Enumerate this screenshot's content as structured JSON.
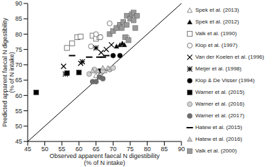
{
  "chart_data": {
    "type": "scatter",
    "x_label": "Observed apparent faecal N digestibility (% of N intake)",
    "y_label": "Predicted apparent faecal N digestibility (% of N intake)",
    "xlim": [
      45,
      90
    ],
    "ylim": [
      45,
      90
    ],
    "xticks": [
      45,
      50,
      55,
      60,
      65,
      70,
      75,
      80,
      85,
      90
    ],
    "yticks": [
      45,
      50,
      55,
      60,
      65,
      70,
      75,
      80,
      85,
      90
    ],
    "grid": false,
    "legend": "right",
    "series": [
      {
        "name": "Spek et al. (2013)",
        "color": "#8a8a8a",
        "marker": "open_triangle",
        "x": [
          65,
          66.2,
          67.5
        ],
        "values": [
          66.5,
          67,
          68
        ]
      },
      {
        "name": "Spek et al. (2012)",
        "color": "#000000",
        "marker": "triangle",
        "x": [
          71,
          72,
          72.7,
          73.3
        ],
        "values": [
          76,
          76.5,
          77,
          76.5
        ]
      },
      {
        "name": "Valk et al. (1990)",
        "color": "#7a7a7a",
        "marker": "open_square",
        "x": [
          56.5,
          58,
          59.5,
          60.5,
          64,
          65,
          66
        ],
        "values": [
          75.5,
          77,
          79,
          79.2,
          79.5,
          78.5,
          79
        ]
      },
      {
        "name": "Klop et al. (1997)",
        "color": "#7a7a7a",
        "marker": "open_circle",
        "x": [
          63.5,
          65,
          66.3,
          69,
          71,
          72,
          74
        ],
        "values": [
          76,
          80,
          79,
          83.5,
          82,
          83,
          79
        ]
      },
      {
        "name": "Van der Koelen et al. (1996)",
        "color": "#000000",
        "marker": "x",
        "x": [
          55.5,
          60.5,
          66.5,
          68,
          69.5
        ],
        "values": [
          69.5,
          70.5,
          74,
          75,
          76.5
        ]
      },
      {
        "name": "Meijer et al. (1998)",
        "color": "#000000",
        "marker": "star",
        "x": [
          56,
          61,
          65
        ],
        "values": [
          67,
          71,
          75.5
        ]
      },
      {
        "name": "Klop & De Visser (1994)",
        "color": "#000000",
        "marker": "circle",
        "x": [
          66,
          69,
          70,
          72
        ],
        "values": [
          68,
          68.5,
          73,
          73
        ]
      },
      {
        "name": "Warner et al. (2015)",
        "color": "#000000",
        "marker": "square",
        "x": [
          47.5,
          56.5,
          60
        ],
        "values": [
          61,
          67.3,
          67.5
        ]
      },
      {
        "name": "Warner et al. (2016)",
        "color": "#d0d0d0",
        "marker": "circle",
        "x": [
          63,
          64.5,
          67,
          69,
          70
        ],
        "values": [
          67,
          68.5,
          68,
          68.5,
          69
        ]
      },
      {
        "name": "Warner et al. (2017)",
        "color": "#6e6e6e",
        "marker": "circle",
        "x": [
          64,
          65,
          66,
          67
        ],
        "values": [
          64.5,
          64.5,
          66,
          65.5
        ]
      },
      {
        "name": "Hatew et al. (2015)",
        "color": "#000000",
        "marker": "dash",
        "x": [
          58,
          63,
          66,
          67,
          68
        ],
        "values": [
          73,
          72.5,
          72.5,
          72.5,
          73
        ]
      },
      {
        "name": "Hatew et al. (2016)",
        "color": "#c8c8c8",
        "marker": "triangle",
        "x": [
          64,
          65.5,
          67,
          68.5
        ],
        "values": [
          68,
          68,
          69,
          69
        ]
      },
      {
        "name": "Valk et al. (2000)",
        "color": "#9a9a9a",
        "marker": "square",
        "x": [
          69,
          70,
          71,
          72,
          72.5,
          73,
          73.5,
          74,
          74.5,
          75,
          75.5,
          76,
          76.5,
          77,
          74,
          76
        ],
        "values": [
          80,
          81,
          82,
          83,
          82,
          84,
          79,
          86,
          78,
          85,
          86.5,
          87,
          82,
          86,
          83,
          84.5
        ]
      }
    ]
  }
}
